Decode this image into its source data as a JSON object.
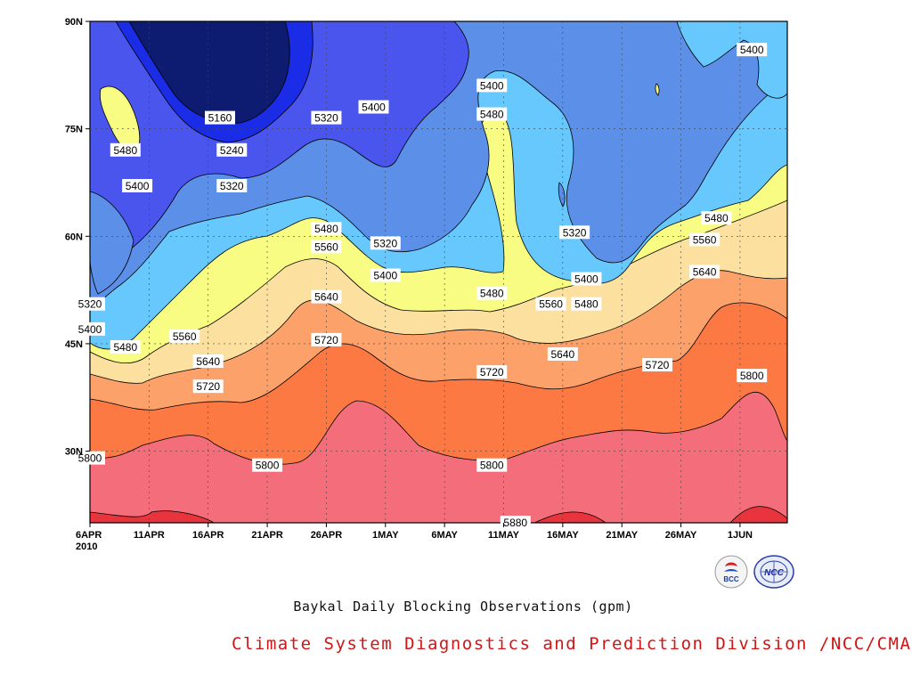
{
  "chart_data": {
    "type": "contour",
    "title": "Baykal Daily Blocking Observations (gpm)",
    "x_ticks": [
      "6APR",
      "11APR",
      "16APR",
      "21APR",
      "26APR",
      "1MAY",
      "6MAY",
      "11MAY",
      "16MAY",
      "21MAY",
      "26MAY",
      "1JUN"
    ],
    "x_year": "2010",
    "y_ticks": [
      "90N",
      "75N",
      "60N",
      "45N",
      "30N"
    ],
    "contour_levels": [
      5160,
      5240,
      5320,
      5400,
      5480,
      5560,
      5640,
      5720,
      5800,
      5880
    ],
    "fill_colors": [
      "#0d1b70",
      "#1a2ce6",
      "#4a55ee",
      "#5b8fe8",
      "#66c8fc",
      "#f8fc82",
      "#fce0a0",
      "#fca16a",
      "#fc7944",
      "#f36d7a",
      "#e8343c"
    ],
    "contour_labels": [
      {
        "text": "5400",
        "date": "2010-06-01",
        "lat": 86
      },
      {
        "text": "5400",
        "date": "2010-05-10",
        "lat": 81
      },
      {
        "text": "5400",
        "date": "2010-04-30",
        "lat": 78
      },
      {
        "text": "5480",
        "date": "2010-05-10",
        "lat": 77
      },
      {
        "text": "5160",
        "date": "2010-04-17",
        "lat": 76.5
      },
      {
        "text": "5320",
        "date": "2010-04-26",
        "lat": 76.5
      },
      {
        "text": "5480",
        "date": "2010-04-09",
        "lat": 72
      },
      {
        "text": "5240",
        "date": "2010-04-18",
        "lat": 72
      },
      {
        "text": "5400",
        "date": "2010-04-10",
        "lat": 67
      },
      {
        "text": "5320",
        "date": "2010-04-18",
        "lat": 67
      },
      {
        "text": "5480",
        "date": "2010-05-29",
        "lat": 62.5
      },
      {
        "text": "5480",
        "date": "2010-04-26",
        "lat": 61
      },
      {
        "text": "5320",
        "date": "2010-05-17",
        "lat": 60.5
      },
      {
        "text": "5320",
        "date": "2010-05-01",
        "lat": 59
      },
      {
        "text": "5560",
        "date": "2010-05-28",
        "lat": 59.5
      },
      {
        "text": "5560",
        "date": "2010-04-26",
        "lat": 58.5
      },
      {
        "text": "5400",
        "date": "2010-05-01",
        "lat": 54.5
      },
      {
        "text": "5640",
        "date": "2010-05-28",
        "lat": 55
      },
      {
        "text": "5400",
        "date": "2010-05-18",
        "lat": 54
      },
      {
        "text": "5480",
        "date": "2010-05-10",
        "lat": 52
      },
      {
        "text": "5640",
        "date": "2010-04-26",
        "lat": 51.5
      },
      {
        "text": "5560",
        "date": "2010-05-15",
        "lat": 50.5
      },
      {
        "text": "5480",
        "date": "2010-05-18",
        "lat": 50.5
      },
      {
        "text": "5320",
        "date": "2010-04-06",
        "lat": 50.5
      },
      {
        "text": "5400",
        "date": "2010-04-06",
        "lat": 47
      },
      {
        "text": "5560",
        "date": "2010-04-14",
        "lat": 46
      },
      {
        "text": "5720",
        "date": "2010-04-26",
        "lat": 45.5
      },
      {
        "text": "5480",
        "date": "2010-04-09",
        "lat": 44.5
      },
      {
        "text": "5640",
        "date": "2010-05-16",
        "lat": 43.5
      },
      {
        "text": "5640",
        "date": "2010-04-16",
        "lat": 42.5
      },
      {
        "text": "5720",
        "date": "2010-05-24",
        "lat": 42
      },
      {
        "text": "5720",
        "date": "2010-05-10",
        "lat": 41
      },
      {
        "text": "5800",
        "date": "2010-06-01",
        "lat": 40.5
      },
      {
        "text": "5720",
        "date": "2010-04-16",
        "lat": 39
      },
      {
        "text": "5800",
        "date": "2010-04-06",
        "lat": 29
      },
      {
        "text": "5800",
        "date": "2010-04-21",
        "lat": 28
      },
      {
        "text": "5800",
        "date": "2010-05-10",
        "lat": 28
      },
      {
        "text": "5880",
        "date": "2010-05-12",
        "lat": 20
      }
    ]
  },
  "caption": "Baykal Daily Blocking Observations (gpm)",
  "footer": "Climate System Diagnostics and Prediction Division /NCC/CMA",
  "logos": {
    "bcc_text": "BCC",
    "ncc_text": "NCC"
  }
}
